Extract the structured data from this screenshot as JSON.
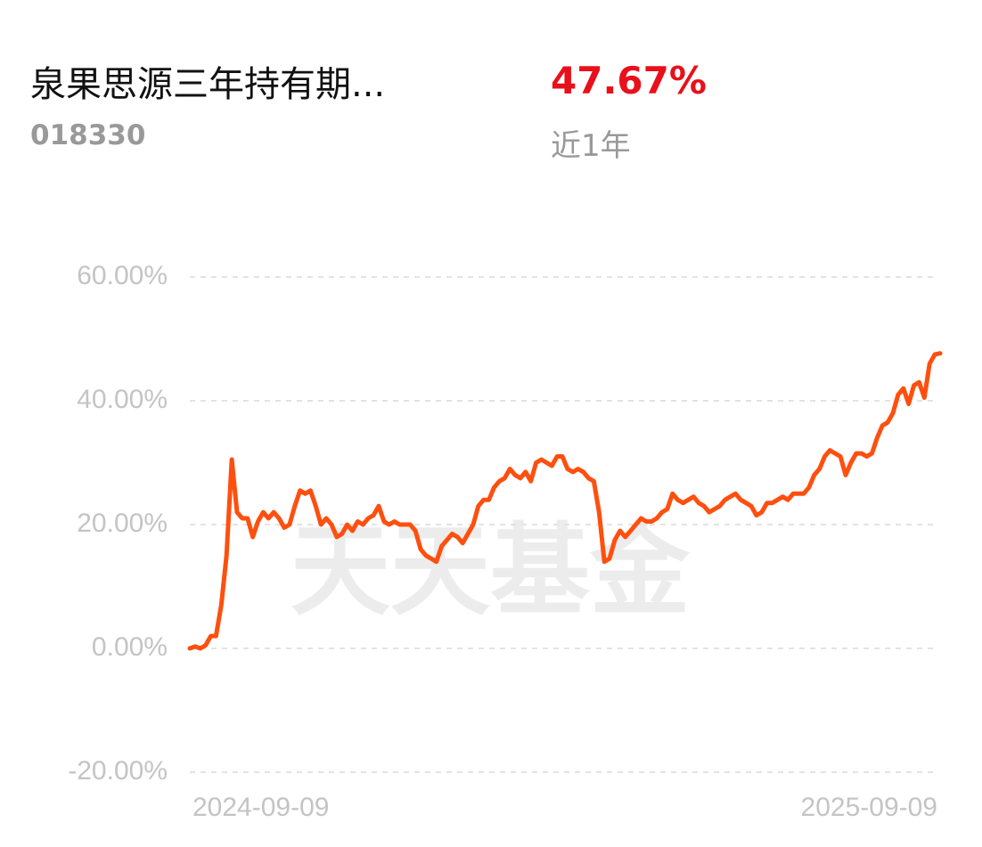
{
  "header": {
    "title": "泉果思源三年持有期...",
    "code": "018330",
    "return": "47.67%",
    "period": "近1年"
  },
  "chart_data": {
    "type": "line",
    "watermark": "天天基金",
    "color": "#ff4f0f",
    "grid": true,
    "ylim": [
      -20,
      60
    ],
    "yticks": [
      {
        "value": -20,
        "label": "-20.00%"
      },
      {
        "value": 0,
        "label": "0.00%"
      },
      {
        "value": 20,
        "label": "20.00%"
      },
      {
        "value": 40,
        "label": "40.00%"
      },
      {
        "value": 60,
        "label": "60.00%"
      }
    ],
    "categories": [
      "2024-09-09",
      null,
      null,
      null,
      null,
      null,
      null,
      null,
      null,
      null,
      null,
      null,
      null,
      null,
      null,
      null,
      null,
      null,
      null,
      null,
      null,
      null,
      null,
      null,
      null,
      null,
      null,
      null,
      null,
      null,
      null,
      null,
      null,
      null,
      null,
      null,
      null,
      null,
      null,
      null,
      null,
      null,
      null,
      null,
      null,
      null,
      null,
      null,
      null,
      null,
      null,
      null,
      null,
      null,
      null,
      null,
      null,
      null,
      null,
      null,
      null,
      null,
      null,
      null,
      null,
      null,
      null,
      null,
      null,
      null,
      null,
      null,
      null,
      null,
      null,
      null,
      null,
      null,
      null,
      null,
      null,
      null,
      null,
      null,
      null,
      null,
      null,
      null,
      null,
      null,
      null,
      null,
      null,
      null,
      null,
      null,
      null,
      null,
      null,
      null,
      null,
      null,
      null,
      null,
      null,
      null,
      null,
      null,
      null,
      null,
      null,
      null,
      null,
      null,
      null,
      null,
      null,
      null,
      null,
      null,
      null,
      null,
      null,
      null,
      null,
      null,
      null,
      null,
      null,
      null,
      null,
      null,
      null,
      null,
      null,
      null,
      null,
      null,
      null,
      null,
      null,
      null,
      null,
      "2025-09-09"
    ],
    "values": [
      0,
      0.3,
      0,
      0.5,
      2,
      2,
      7,
      15,
      30.5,
      22,
      21,
      21,
      18,
      20.5,
      22,
      21,
      22,
      21,
      19.5,
      20,
      23,
      25.5,
      25,
      25.5,
      23,
      20,
      21,
      20,
      18,
      18.5,
      20,
      19,
      20.5,
      20,
      21,
      21.5,
      23,
      20.5,
      20,
      20.5,
      20,
      20,
      20,
      19,
      16,
      15,
      14.5,
      14,
      16.5,
      17.5,
      18.5,
      18,
      17,
      18.5,
      20,
      23,
      24,
      24,
      26,
      27,
      27.5,
      29,
      28,
      27.5,
      28.5,
      27,
      30,
      30.5,
      30,
      29.5,
      31,
      31,
      29,
      28.5,
      29,
      28.5,
      27.5,
      27,
      22,
      14,
      14.5,
      17.5,
      19,
      18,
      19,
      20,
      21,
      20.5,
      20.5,
      21,
      22,
      22.5,
      25,
      24,
      23.5,
      24,
      24.5,
      23.5,
      23,
      22,
      22.5,
      23,
      24,
      24.5,
      25,
      24,
      23.5,
      23,
      21.5,
      22,
      23.5,
      23.5,
      24,
      24.5,
      24,
      25,
      25,
      25,
      26,
      28,
      29,
      31,
      32,
      31.5,
      31,
      28,
      30,
      31.5,
      31.5,
      31,
      31.5,
      34,
      36,
      36.5,
      38,
      41,
      42,
      39.5,
      42.5,
      43,
      40.5,
      46,
      47.5,
      47.67
    ]
  }
}
